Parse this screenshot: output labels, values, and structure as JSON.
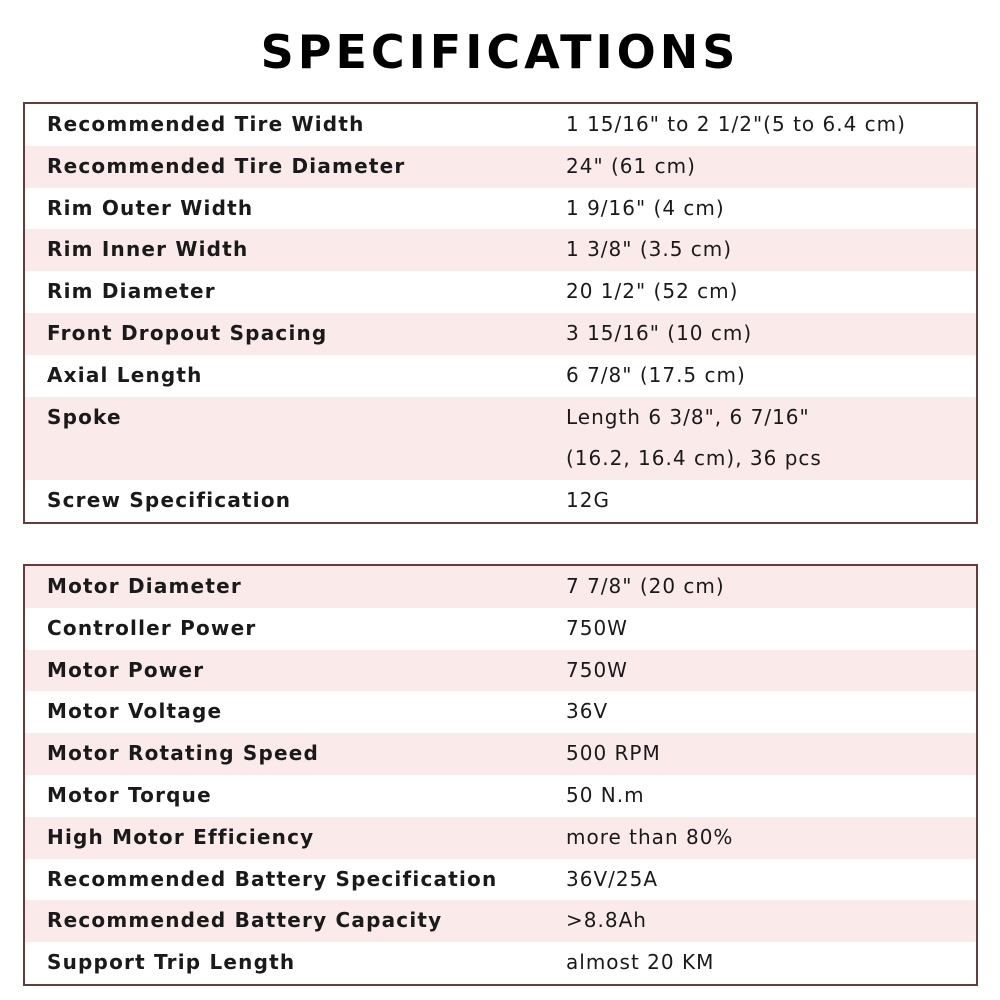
{
  "title": "SPECIFICATIONS",
  "colors": {
    "border": "#6b3a3a",
    "stripe": "#fbeaea"
  },
  "tables": [
    {
      "first_row_shaded": false,
      "rows": [
        {
          "label": "Recommended Tire Width",
          "value": "1 15/16\" to 2 1/2\"(5 to 6.4 cm)"
        },
        {
          "label": "Recommended Tire Diameter",
          "value": "24\" (61 cm)"
        },
        {
          "label": "Rim Outer Width",
          "value": "1 9/16\" (4 cm)"
        },
        {
          "label": "Rim Inner Width",
          "value": "1 3/8\" (3.5 cm)"
        },
        {
          "label": "Rim Diameter",
          "value": "20 1/2\" (52 cm)"
        },
        {
          "label": "Front Dropout Spacing",
          "value": "3 15/16\" (10 cm)"
        },
        {
          "label": "Axial Length",
          "value": "6 7/8\" (17.5 cm)"
        },
        {
          "label": "Spoke",
          "value": "Length 6 3/8\", 6 7/16\"\n(16.2, 16.4 cm), 36 pcs"
        },
        {
          "label": "Screw Specification",
          "value": "12G"
        }
      ]
    },
    {
      "first_row_shaded": true,
      "rows": [
        {
          "label": "Motor Diameter",
          "value": "7 7/8\" (20 cm)"
        },
        {
          "label": "Controller Power",
          "value": "750W"
        },
        {
          "label": "Motor Power",
          "value": "750W"
        },
        {
          "label": "Motor Voltage",
          "value": "36V"
        },
        {
          "label": "Motor Rotating Speed",
          "value": "500 RPM"
        },
        {
          "label": "Motor Torque",
          "value": "50 N.m"
        },
        {
          "label": "High Motor Efficiency",
          "value": "more than 80%"
        },
        {
          "label": "Recommended Battery Specification",
          "value": "36V/25A"
        },
        {
          "label": "Recommended Battery Capacity",
          "value": ">8.8Ah"
        },
        {
          "label": "Support Trip Length",
          "value": "almost 20 KM"
        }
      ]
    }
  ]
}
